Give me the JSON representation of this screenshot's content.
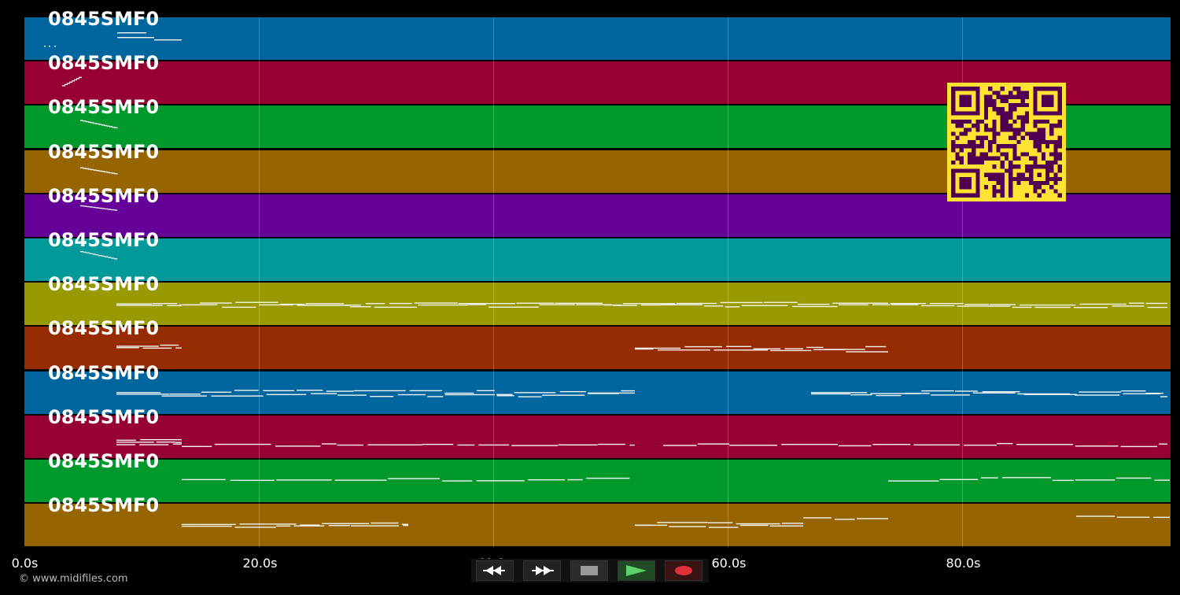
{
  "player": {
    "colors": {
      "tracks": [
        "#01659e",
        "#960033",
        "#01992c",
        "#966502",
        "#650099",
        "#019999",
        "#999902",
        "#972b02",
        "#01659e",
        "#960033",
        "#01992c",
        "#966502"
      ],
      "qr_fg": "#fee332",
      "qr_bg": "#510051"
    },
    "tracks": [
      {
        "label": "0845SMF0"
      },
      {
        "label": "0845SMF0"
      },
      {
        "label": "0845SMF0"
      },
      {
        "label": "0845SMF0"
      },
      {
        "label": "0845SMF0"
      },
      {
        "label": "0845SMF0"
      },
      {
        "label": "0845SMF0"
      },
      {
        "label": "0845SMF0"
      },
      {
        "label": "0845SMF0"
      },
      {
        "label": "0845SMF0"
      },
      {
        "label": "0845SMF0"
      },
      {
        "label": "0845SMF0"
      }
    ],
    "timeline": {
      "min_s": 0,
      "max_s": 98,
      "ticks": [
        {
          "value": 0,
          "label": "0.0s"
        },
        {
          "value": 20,
          "label": "20.0s"
        },
        {
          "value": 40,
          "label": "40.0s"
        },
        {
          "value": 60,
          "label": "60.0s"
        },
        {
          "value": 80,
          "label": "80.0s"
        }
      ]
    },
    "transport": {
      "buttons": [
        {
          "name": "rewind-button",
          "icon": "rewind-icon"
        },
        {
          "name": "fast-forward-button",
          "icon": "fast-forward-icon"
        },
        {
          "name": "stop-button",
          "icon": "stop-icon"
        },
        {
          "name": "play-button",
          "icon": "play-icon"
        },
        {
          "name": "record-button",
          "icon": "record-icon"
        }
      ]
    },
    "copyright": "© www.midifiles.com"
  }
}
